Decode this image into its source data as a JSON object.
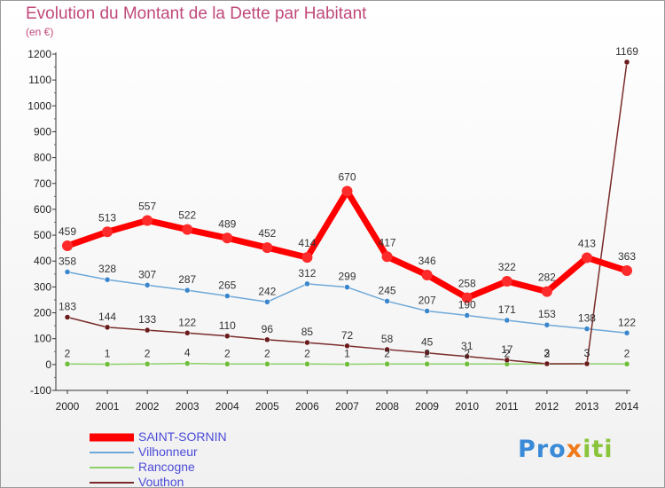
{
  "chart_data": {
    "type": "line",
    "title": "Evolution du Montant de la Dette par Habitant",
    "subtitle": "(en €)",
    "xlabel": "",
    "ylabel": "",
    "x": [
      "2000",
      "2001",
      "2002",
      "2003",
      "2004",
      "2005",
      "2006",
      "2007",
      "2008",
      "2009",
      "2010",
      "2011",
      "2012",
      "2013",
      "2014"
    ],
    "ylim": [
      -100,
      1200
    ],
    "yticks": [
      "-100",
      "0",
      "100",
      "200",
      "300",
      "400",
      "500",
      "600",
      "700",
      "800",
      "900",
      "1000",
      "1100",
      "1200"
    ],
    "grid": false,
    "legend_position": "bottom-left",
    "series": [
      {
        "name": "SAINT-SORNIN",
        "color": "#ff0000",
        "marker": "#ff2a2a",
        "values": [
          459,
          513,
          557,
          522,
          489,
          452,
          414,
          670,
          417,
          346,
          258,
          322,
          282,
          413,
          363
        ]
      },
      {
        "name": "Vilhonneur",
        "color": "#6ea8d8",
        "marker": "#3a86cc",
        "values": [
          358,
          328,
          307,
          287,
          265,
          242,
          312,
          299,
          245,
          207,
          190,
          171,
          153,
          138,
          122
        ]
      },
      {
        "name": "Rancogne",
        "color": "#8fd06a",
        "marker": "#6ebe3a",
        "values": [
          2,
          1,
          2,
          4,
          2,
          2,
          2,
          1,
          2,
          2,
          2,
          2,
          2,
          3,
          2
        ]
      },
      {
        "name": "Vouthon",
        "color": "#7a2a2a",
        "marker": "#6a1a1a",
        "values": [
          183,
          144,
          133,
          122,
          110,
          96,
          85,
          72,
          58,
          45,
          31,
          17,
          3,
          3,
          1169
        ]
      }
    ]
  },
  "logo": {
    "p1": "Pro",
    "p2": "x",
    "p3": "iti"
  }
}
